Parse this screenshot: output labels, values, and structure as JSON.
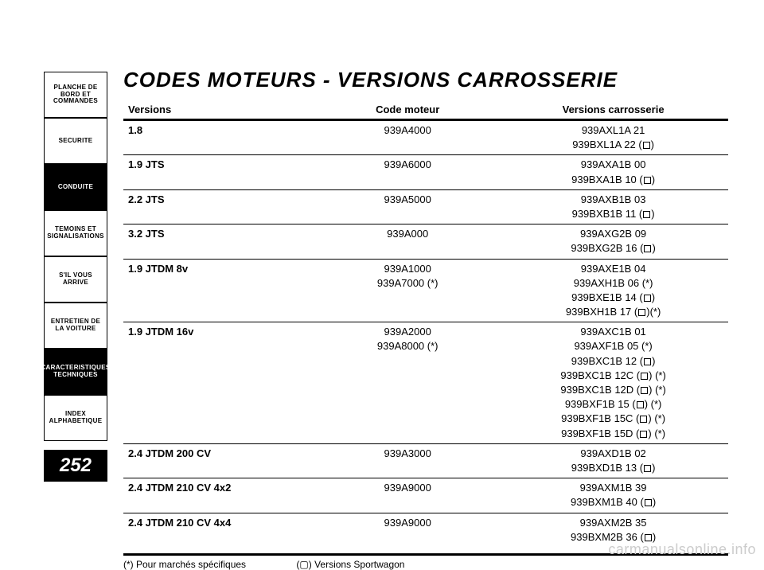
{
  "sidebar": {
    "tabs": [
      {
        "label": "PLANCHE DE BORD ET COMMANDES",
        "style": "light"
      },
      {
        "label": "SECURITE",
        "style": "light"
      },
      {
        "label": "CONDUITE",
        "style": "dark"
      },
      {
        "label": "TEMOINS ET SIGNALISATIONS",
        "style": "light"
      },
      {
        "label": "S'IL VOUS ARRIVE",
        "style": "light"
      },
      {
        "label": "ENTRETIEN DE LA VOITURE",
        "style": "light"
      },
      {
        "label": "CARACTERISTIQUES TECHNIQUES",
        "style": "dark"
      },
      {
        "label": "INDEX ALPHABETIQUE",
        "style": "light"
      }
    ],
    "page_number": "252"
  },
  "title": "CODES MOTEURS - VERSIONS CARROSSERIE",
  "table": {
    "headers": {
      "versions": "Versions",
      "code": "Code moteur",
      "carrosserie": "Versions carrosserie"
    },
    "rows": [
      {
        "version": "1.8",
        "codes": [
          "939A4000"
        ],
        "carr": [
          "939AXL1A 21",
          "939BXL1A 22 (▢)"
        ]
      },
      {
        "version": "1.9 JTS",
        "codes": [
          "939A6000"
        ],
        "carr": [
          "939AXA1B 00",
          "939BXA1B 10 (▢)"
        ]
      },
      {
        "version": "2.2 JTS",
        "codes": [
          "939A5000"
        ],
        "carr": [
          "939AXB1B 03",
          "939BXB1B 11 (▢)"
        ]
      },
      {
        "version": "3.2 JTS",
        "codes": [
          "939A000"
        ],
        "carr": [
          "939AXG2B 09",
          "939BXG2B 16 (▢)"
        ]
      },
      {
        "version": "1.9 JTDM 8v",
        "codes": [
          "939A1000",
          "939A7000 (*)"
        ],
        "carr": [
          "939AXE1B 04",
          "939AXH1B 06 (*)",
          "939BXE1B 14 (▢)",
          "939BXH1B 17 (▢)(*)"
        ]
      },
      {
        "version": "1.9 JTDM 16v",
        "codes": [
          "939A2000",
          "939A8000 (*)"
        ],
        "carr": [
          "939AXC1B 01",
          "939AXF1B 05 (*)",
          "939BXC1B 12 (▢)",
          "939BXC1B 12C (▢) (*)",
          "939BXC1B 12D (▢) (*)",
          "939BXF1B 15 (▢) (*)",
          "939BXF1B 15C (▢) (*)",
          "939BXF1B 15D (▢) (*)"
        ]
      },
      {
        "version": "2.4 JTDM 200 CV",
        "codes": [
          "939A3000"
        ],
        "carr": [
          "939AXD1B 02",
          "939BXD1B 13 (▢)"
        ]
      },
      {
        "version": "2.4 JTDM 210 CV 4x2",
        "codes": [
          "939A9000"
        ],
        "carr": [
          "939AXM1B 39",
          "939BXM1B 40 (▢)"
        ]
      },
      {
        "version": "2.4 JTDM 210 CV 4x4",
        "codes": [
          "939A9000"
        ],
        "carr": [
          "939AXM2B 35",
          "939BXM2B 36 (▢)"
        ]
      }
    ]
  },
  "footnote": {
    "left": "(*) Pour marchés spécifiques",
    "right": "(▢) Versions Sportwagon"
  },
  "watermark": "carmanualsonline.info"
}
